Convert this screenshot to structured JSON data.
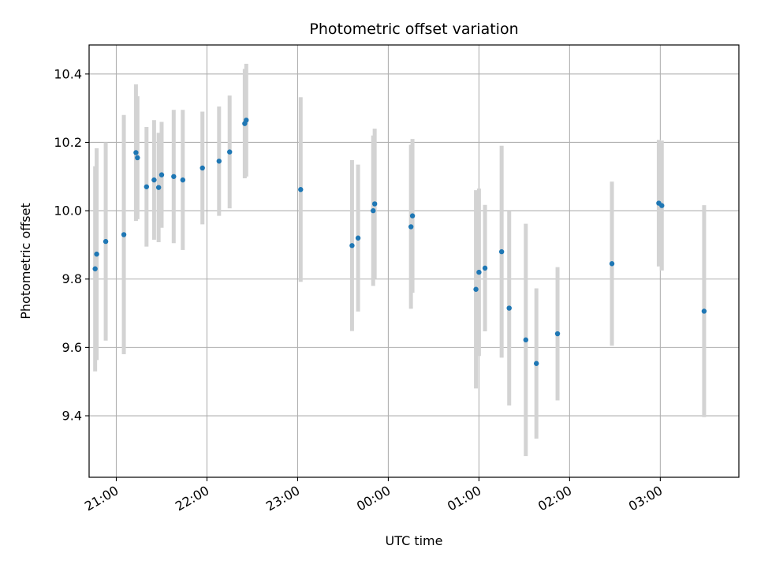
{
  "chart_data": {
    "type": "scatter",
    "title": "Photometric offset variation",
    "xlabel": "UTC time",
    "ylabel": "Photometric offset",
    "x_axis_type": "time",
    "xlim": [
      "20:42",
      "03:52"
    ],
    "ylim": [
      9.22,
      10.485
    ],
    "x_ticks": [
      "21:00",
      "22:00",
      "23:00",
      "00:00",
      "01:00",
      "02:00",
      "03:00"
    ],
    "y_ticks": [
      9.4,
      9.6,
      9.8,
      10.0,
      10.2,
      10.4
    ],
    "grid": true,
    "marker_color": "#1f77b4",
    "errorbar_color": "#d3d3d3",
    "points": [
      {
        "t": "20:46",
        "y": 9.83,
        "err": 0.3
      },
      {
        "t": "20:47",
        "y": 9.873,
        "err": 0.31
      },
      {
        "t": "20:53",
        "y": 9.91,
        "err": 0.29
      },
      {
        "t": "21:05",
        "y": 9.93,
        "err": 0.35
      },
      {
        "t": "21:13",
        "y": 10.17,
        "err": 0.2
      },
      {
        "t": "21:14",
        "y": 10.155,
        "err": 0.18
      },
      {
        "t": "21:20",
        "y": 10.07,
        "err": 0.175
      },
      {
        "t": "21:25",
        "y": 10.09,
        "err": 0.175
      },
      {
        "t": "21:28",
        "y": 10.068,
        "err": 0.16
      },
      {
        "t": "21:30",
        "y": 10.105,
        "err": 0.155
      },
      {
        "t": "21:38",
        "y": 10.1,
        "err": 0.195
      },
      {
        "t": "21:44",
        "y": 10.09,
        "err": 0.205
      },
      {
        "t": "21:57",
        "y": 10.125,
        "err": 0.165
      },
      {
        "t": "22:08",
        "y": 10.145,
        "err": 0.16
      },
      {
        "t": "22:15",
        "y": 10.172,
        "err": 0.165
      },
      {
        "t": "22:25",
        "y": 10.255,
        "err": 0.16
      },
      {
        "t": "22:26",
        "y": 10.265,
        "err": 0.165
      },
      {
        "t": "23:02",
        "y": 10.062,
        "err": 0.27
      },
      {
        "t": "23:36",
        "y": 9.898,
        "err": 0.25
      },
      {
        "t": "23:40",
        "y": 9.92,
        "err": 0.215
      },
      {
        "t": "23:50",
        "y": 10.0,
        "err": 0.22
      },
      {
        "t": "23:51",
        "y": 10.02,
        "err": 0.22
      },
      {
        "t": "00:15",
        "y": 9.953,
        "err": 0.24
      },
      {
        "t": "00:16",
        "y": 9.985,
        "err": 0.225
      },
      {
        "t": "00:58",
        "y": 9.77,
        "err": 0.29
      },
      {
        "t": "01:00",
        "y": 9.82,
        "err": 0.245
      },
      {
        "t": "01:04",
        "y": 9.832,
        "err": 0.185
      },
      {
        "t": "01:15",
        "y": 9.88,
        "err": 0.31
      },
      {
        "t": "01:20",
        "y": 9.715,
        "err": 0.285
      },
      {
        "t": "01:31",
        "y": 9.622,
        "err": 0.34
      },
      {
        "t": "01:38",
        "y": 9.553,
        "err": 0.22
      },
      {
        "t": "01:52",
        "y": 9.64,
        "err": 0.195
      },
      {
        "t": "02:28",
        "y": 9.845,
        "err": 0.24
      },
      {
        "t": "02:59",
        "y": 10.022,
        "err": 0.185
      },
      {
        "t": "03:01",
        "y": 10.015,
        "err": 0.19
      },
      {
        "t": "03:29",
        "y": 9.706,
        "err": 0.31
      }
    ]
  }
}
